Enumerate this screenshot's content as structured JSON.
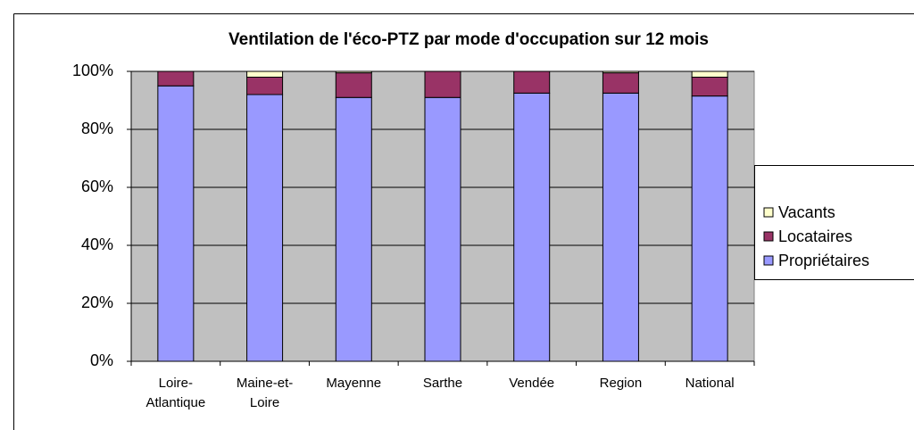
{
  "chart_data": {
    "type": "bar",
    "stacked": true,
    "title": "Ventilation de l'éco-PTZ par mode d'occupation sur 12 mois",
    "categories": [
      "Loire-Atlantique",
      "Maine-et-Loire",
      "Mayenne",
      "Sarthe",
      "Vendée",
      "Region",
      "National"
    ],
    "series": [
      {
        "name": "Propriétaires",
        "color": "#9999ff",
        "values": [
          95,
          92,
          91,
          91,
          92.5,
          92.5,
          91.5
        ]
      },
      {
        "name": "Locataires",
        "color": "#993366",
        "values": [
          5,
          6,
          8.5,
          9,
          7.5,
          7,
          6.5
        ]
      },
      {
        "name": "Vacants",
        "color": "#ffffcc",
        "values": [
          0,
          2,
          0.5,
          0,
          0,
          0.5,
          2
        ]
      }
    ],
    "ylim": [
      0,
      100
    ],
    "yticks": [
      {
        "value": 0,
        "label": "0%"
      },
      {
        "value": 20,
        "label": "20%"
      },
      {
        "value": 40,
        "label": "40%"
      },
      {
        "value": 60,
        "label": "60%"
      },
      {
        "value": 80,
        "label": "80%"
      },
      {
        "value": 100,
        "label": "100%"
      }
    ],
    "grid": true,
    "legend": "right"
  }
}
